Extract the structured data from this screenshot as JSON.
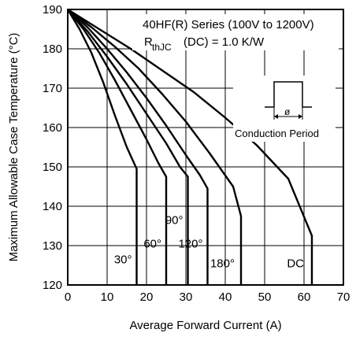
{
  "chart_data": {
    "type": "line",
    "xlabel": "Average Forward Current (A)",
    "ylabel": "Maximum Allowable Case Temperature (°C)",
    "xlim": [
      0,
      70
    ],
    "ylim": [
      120,
      190
    ],
    "xticks": [
      "0",
      "10",
      "20",
      "30",
      "40",
      "50",
      "60",
      "70"
    ],
    "yticks": [
      "120",
      "130",
      "140",
      "150",
      "160",
      "170",
      "180",
      "190"
    ],
    "grid": true,
    "annotation": {
      "line1": "40HF(R) Series (100V to 1200V)",
      "line2_main": "R",
      "line2_sub": "thJC",
      "line2_rest": "(DC) = 1.0 K/W"
    },
    "inset_label": "Conduction Period",
    "inset_symbol": "ø",
    "series": [
      {
        "name": "30°",
        "x": [
          0,
          3,
          6,
          9,
          12,
          15,
          17.5,
          17.5
        ],
        "y": [
          190,
          185,
          179,
          171.5,
          163,
          155,
          149.5,
          120
        ]
      },
      {
        "name": "60°",
        "x": [
          0,
          4,
          8,
          12,
          16,
          20,
          23,
          25,
          25
        ],
        "y": [
          190,
          185,
          179,
          172,
          164.5,
          157,
          151,
          147.5,
          120
        ]
      },
      {
        "name": "90°",
        "x": [
          0,
          5,
          10,
          15,
          20,
          25,
          28.5,
          30.5,
          30.5
        ],
        "y": [
          190,
          184.5,
          178,
          171,
          163.5,
          156,
          150,
          147.5,
          120
        ]
      },
      {
        "name": "120°",
        "x": [
          0,
          5,
          10,
          15,
          20,
          25,
          30,
          33.5,
          35.5,
          35.5
        ],
        "y": [
          190,
          185.5,
          180,
          174,
          167.5,
          160.5,
          153,
          148,
          144.5,
          120
        ]
      },
      {
        "name": "180°",
        "x": [
          0,
          6,
          12,
          18,
          24,
          30,
          36,
          42,
          44,
          44
        ],
        "y": [
          190,
          185.5,
          180.5,
          175,
          168.5,
          161.5,
          153.5,
          145,
          137.5,
          120
        ]
      },
      {
        "name": "DC",
        "x": [
          0,
          8,
          16,
          24,
          32,
          40,
          48,
          56,
          62,
          62
        ],
        "y": [
          190,
          185,
          180,
          174.5,
          169,
          162.5,
          155.5,
          147,
          132.5,
          120
        ]
      }
    ],
    "series_labels": [
      "30°",
      "60°",
      "90°",
      "120°",
      "180°",
      "DC"
    ]
  }
}
